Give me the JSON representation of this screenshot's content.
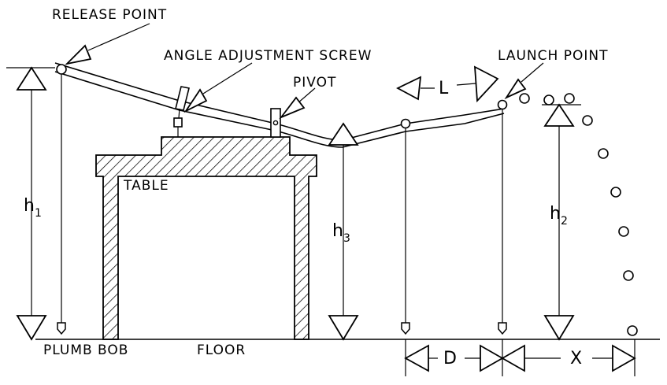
{
  "labels": {
    "release_point": "RELEASE POINT",
    "angle_adjustment_screw": "ANGLE ADJUSTMENT SCREW",
    "pivot": "PIVOT",
    "launch_point": "LAUNCH POINT",
    "table": "TABLE",
    "plumb_bob": "PLUMB BOB",
    "floor": "FLOOR"
  },
  "dimensions": {
    "h1": {
      "base": "h",
      "sub": "1"
    },
    "h2": {
      "base": "h",
      "sub": "2"
    },
    "h3": {
      "base": "h",
      "sub": "3"
    },
    "L": "L",
    "D": "D",
    "X": "X"
  }
}
